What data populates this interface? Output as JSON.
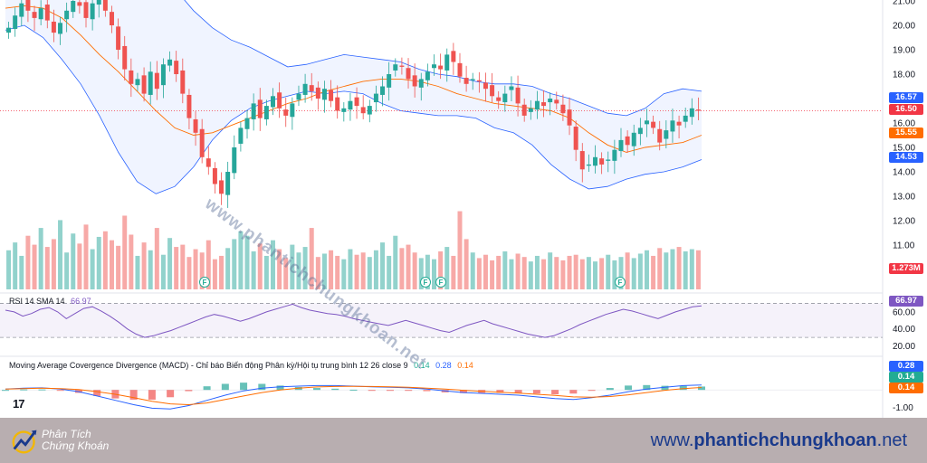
{
  "chart_data": [
    {
      "type": "candlestick",
      "yaxis_ticks": [
        "21.00",
        "20.00",
        "19.00",
        "18.00",
        "17.00",
        "16.00",
        "15.00",
        "14.00",
        "13.00",
        "12.00",
        "11.00"
      ],
      "ylim": [
        10.5,
        21.0
      ],
      "price_line_value": 16.5,
      "candles_close_path": [
        19.9,
        20.4,
        20.9,
        20.6,
        20.3,
        20.7,
        20.2,
        19.7,
        20.1,
        20.6,
        21.0,
        20.8,
        20.3,
        20.9,
        21.2,
        20.6,
        20.0,
        19.0,
        18.2,
        17.6,
        17.8,
        17.2,
        18.1,
        17.4,
        18.4,
        18.6,
        18.0,
        17.2,
        16.2,
        15.6,
        14.6,
        14.2,
        13.5,
        13.1,
        14.0,
        15.0,
        15.8,
        16.2,
        16.8,
        16.2,
        16.7,
        17.1,
        16.6,
        16.3,
        16.8,
        17.2,
        17.6,
        17.3,
        17.0,
        17.4,
        16.9,
        16.5,
        16.6,
        16.9,
        16.7,
        16.4,
        16.7,
        17.2,
        17.5,
        18.0,
        18.4,
        18.3,
        17.8,
        17.5,
        17.8,
        18.1,
        18.4,
        18.2,
        18.8,
        18.5,
        17.9,
        17.6,
        17.8,
        17.7,
        17.4,
        17.1,
        16.9,
        17.2,
        17.5,
        16.8,
        16.3,
        16.6,
        16.9,
        16.7,
        17.0,
        16.8,
        16.4,
        15.9,
        14.9,
        14.1,
        14.3,
        14.6,
        14.3,
        14.5,
        14.9,
        15.3,
        15.1,
        15.6,
        15.8,
        16.1,
        15.8,
        15.2,
        15.7,
        16.1,
        15.9,
        16.3,
        16.6,
        16.5
      ],
      "bollinger_upper": [
        21.5,
        21.6,
        21.6,
        21.5,
        21.4,
        21.4,
        21.5,
        21.7,
        21.8,
        21.5,
        20.6,
        19.9,
        19.4,
        19.1,
        18.7,
        18.3,
        18.4,
        18.6,
        18.8,
        18.7,
        18.6,
        18.5,
        18.2,
        18.0,
        17.9,
        17.7,
        17.6,
        17.6,
        17.5,
        17.2,
        17.0,
        16.7,
        16.4,
        16.3,
        16.6,
        17.2,
        17.4,
        17.3
      ],
      "bollinger_basis": [
        20.7,
        20.8,
        20.7,
        20.3,
        19.6,
        18.8,
        18.1,
        17.3,
        16.5,
        15.8,
        15.5,
        15.6,
        15.9,
        16.2,
        16.5,
        16.8,
        17.0,
        17.3,
        17.5,
        17.7,
        17.8,
        17.8,
        17.7,
        17.5,
        17.2,
        17.0,
        16.8,
        16.7,
        16.6,
        16.5,
        16.2,
        15.6,
        15.1,
        14.8,
        15.0,
        15.1,
        15.2,
        15.5
      ],
      "bollinger_lower": [
        19.8,
        20.0,
        19.5,
        18.6,
        17.6,
        16.3,
        14.8,
        13.6,
        13.1,
        13.4,
        14.2,
        15.3,
        16.1,
        16.6,
        16.9,
        17.1,
        17.3,
        17.2,
        17.3,
        17.2,
        16.8,
        16.5,
        16.4,
        16.3,
        16.3,
        16.2,
        15.8,
        15.6,
        15.1,
        14.3,
        13.7,
        13.3,
        13.4,
        13.7,
        13.9,
        14.0,
        14.2,
        14.5
      ],
      "price_tags": [
        {
          "value": "16.57",
          "color": "#2962ff"
        },
        {
          "value": "16.50",
          "color": "#f23645"
        },
        {
          "value": "15.55",
          "color": "#ff6d00"
        },
        {
          "value": "14.53",
          "color": "#2962ff"
        }
      ]
    },
    {
      "type": "bar",
      "name": "volume",
      "last_value_label": "1.273M",
      "values": [
        0.35,
        0.42,
        0.3,
        0.48,
        0.4,
        0.55,
        0.38,
        0.45,
        0.62,
        0.33,
        0.5,
        0.41,
        0.58,
        0.36,
        0.47,
        0.52,
        0.44,
        0.39,
        0.66,
        0.49,
        0.3,
        0.42,
        0.35,
        0.55,
        0.31,
        0.46,
        0.38,
        0.4,
        0.29,
        0.36,
        0.33,
        0.44,
        0.27,
        0.3,
        0.37,
        0.45,
        0.52,
        0.48,
        0.34,
        0.41,
        0.3,
        0.44,
        0.36,
        0.28,
        0.4,
        0.33,
        0.38,
        0.55,
        0.29,
        0.32,
        0.35,
        0.3,
        0.27,
        0.36,
        0.31,
        0.33,
        0.29,
        0.35,
        0.42,
        0.3,
        0.48,
        0.37,
        0.4,
        0.33,
        0.28,
        0.31,
        0.27,
        0.34,
        0.38,
        0.3,
        0.7,
        0.45,
        0.33,
        0.28,
        0.31,
        0.26,
        0.3,
        0.34,
        0.27,
        0.32,
        0.29,
        0.25,
        0.3,
        0.27,
        0.33,
        0.29,
        0.26,
        0.3,
        0.31,
        0.27,
        0.29,
        0.25,
        0.28,
        0.31,
        0.26,
        0.29,
        0.33,
        0.28,
        0.32,
        0.35,
        0.3,
        0.37,
        0.33,
        0.36,
        0.38,
        0.34,
        0.36,
        0.35
      ]
    },
    {
      "type": "line",
      "name": "rsi",
      "legend": {
        "label": "RSI 14 SMA 14",
        "value": "66.97"
      },
      "yaxis_ticks": [
        "60.00",
        "40.00",
        "20.00"
      ],
      "ylim": [
        10,
        80
      ],
      "bands": [
        70,
        30
      ],
      "last_value_label": "66.97",
      "values": [
        62,
        60,
        55,
        58,
        63,
        65,
        60,
        52,
        58,
        64,
        66,
        61,
        55,
        48,
        40,
        34,
        30,
        32,
        35,
        38,
        42,
        46,
        50,
        54,
        57,
        55,
        52,
        49,
        52,
        56,
        60,
        63,
        66,
        69,
        65,
        62,
        60,
        58,
        57,
        55,
        52,
        50,
        48,
        46,
        44,
        47,
        50,
        47,
        44,
        41,
        38,
        36,
        40,
        44,
        47,
        50,
        46,
        43,
        40,
        37,
        34,
        32,
        30,
        32,
        36,
        40,
        45,
        49,
        53,
        57,
        60,
        63,
        61,
        58,
        55,
        52,
        56,
        60,
        63,
        66,
        67
      ]
    },
    {
      "type": "line",
      "name": "macd",
      "legend": {
        "label": "Moving Average Covergence Divergence (MACD) - Chỉ báo Biến động Phân kỳ/Hội tụ trung bình 12 26 close 9",
        "values": [
          "0.14",
          "0.28",
          "0.14"
        ]
      },
      "yaxis_ticks": [
        "-1.00"
      ],
      "ylim": [
        -1.5,
        1.0
      ],
      "last_value_labels": [
        {
          "value": "0.28",
          "color": "#2962ff"
        },
        {
          "value": "0.14",
          "color": "#22ab94"
        },
        {
          "value": "0.14",
          "color": "#ff6d00"
        }
      ],
      "macd_line": [
        0.05,
        0.1,
        0.12,
        0.05,
        -0.1,
        -0.35,
        -0.6,
        -0.85,
        -1.05,
        -1.1,
        -0.9,
        -0.6,
        -0.3,
        -0.05,
        0.1,
        0.18,
        0.22,
        0.25,
        0.25,
        0.22,
        0.18,
        0.15,
        0.12,
        0.05,
        -0.05,
        -0.15,
        -0.2,
        -0.25,
        -0.3,
        -0.4,
        -0.5,
        -0.55,
        -0.45,
        -0.3,
        -0.1,
        0.05,
        0.15,
        0.25,
        0.28
      ],
      "signal_line": [
        0.05,
        0.08,
        0.1,
        0.08,
        0.02,
        -0.1,
        -0.25,
        -0.45,
        -0.65,
        -0.8,
        -0.85,
        -0.75,
        -0.55,
        -0.35,
        -0.15,
        0.0,
        0.1,
        0.17,
        0.2,
        0.21,
        0.2,
        0.18,
        0.15,
        0.1,
        0.05,
        -0.02,
        -0.08,
        -0.13,
        -0.18,
        -0.25,
        -0.32,
        -0.4,
        -0.42,
        -0.38,
        -0.28,
        -0.15,
        -0.02,
        0.08,
        0.14
      ]
    }
  ],
  "watermark": "www.phantichchungkhoan.net",
  "tv_logo": "17",
  "event_flags": [
    "F",
    "F",
    "F",
    "F"
  ],
  "footer": {
    "brand_line1": "Phân Tích",
    "brand_line2": "Chứng Khoán",
    "url_prefix": "www.",
    "url_bold": "phantichchungkhoan",
    "url_suffix": ".net"
  }
}
